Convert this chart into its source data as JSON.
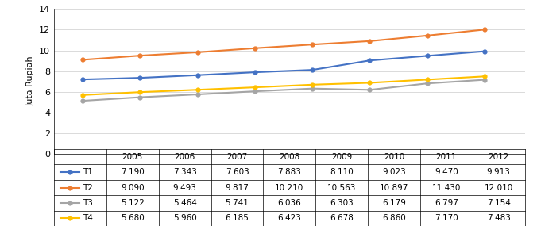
{
  "years": [
    2005,
    2006,
    2007,
    2008,
    2009,
    2010,
    2011,
    2012
  ],
  "T1": [
    7.19,
    7.343,
    7.603,
    7.883,
    8.11,
    9.023,
    9.47,
    9.913
  ],
  "T2": [
    9.09,
    9.493,
    9.817,
    10.21,
    10.563,
    10.897,
    11.43,
    12.01
  ],
  "T3": [
    5.122,
    5.464,
    5.741,
    6.036,
    6.303,
    6.179,
    6.797,
    7.154
  ],
  "T4": [
    5.68,
    5.96,
    6.185,
    6.423,
    6.678,
    6.86,
    7.17,
    7.483
  ],
  "colors": {
    "T1": "#4472C4",
    "T2": "#ED7D31",
    "T3": "#A5A5A5",
    "T4": "#FFC000"
  },
  "ylabel": "Juta Rupiah",
  "ylim": [
    0,
    14
  ],
  "yticks": [
    0,
    2,
    4,
    6,
    8,
    10,
    12,
    14
  ],
  "table_years": [
    "2005",
    "2006",
    "2007",
    "2008",
    "2009",
    "2010",
    "2011",
    "2012"
  ],
  "table_data": {
    "T1": [
      "7.190",
      "7.343",
      "7.603",
      "7.883",
      "8.110",
      "9.023",
      "9.470",
      "9.913"
    ],
    "T2": [
      "9.090",
      "9.493",
      "9.817",
      "10.210",
      "10.563",
      "10.897",
      "11.430",
      "12.010"
    ],
    "T3": [
      "5.122",
      "5.464",
      "5.741",
      "6.036",
      "6.303",
      "6.179",
      "6.797",
      "7.154"
    ],
    "T4": [
      "5.680",
      "5.960",
      "6.185",
      "6.423",
      "6.678",
      "6.860",
      "7.170",
      "7.483"
    ]
  }
}
